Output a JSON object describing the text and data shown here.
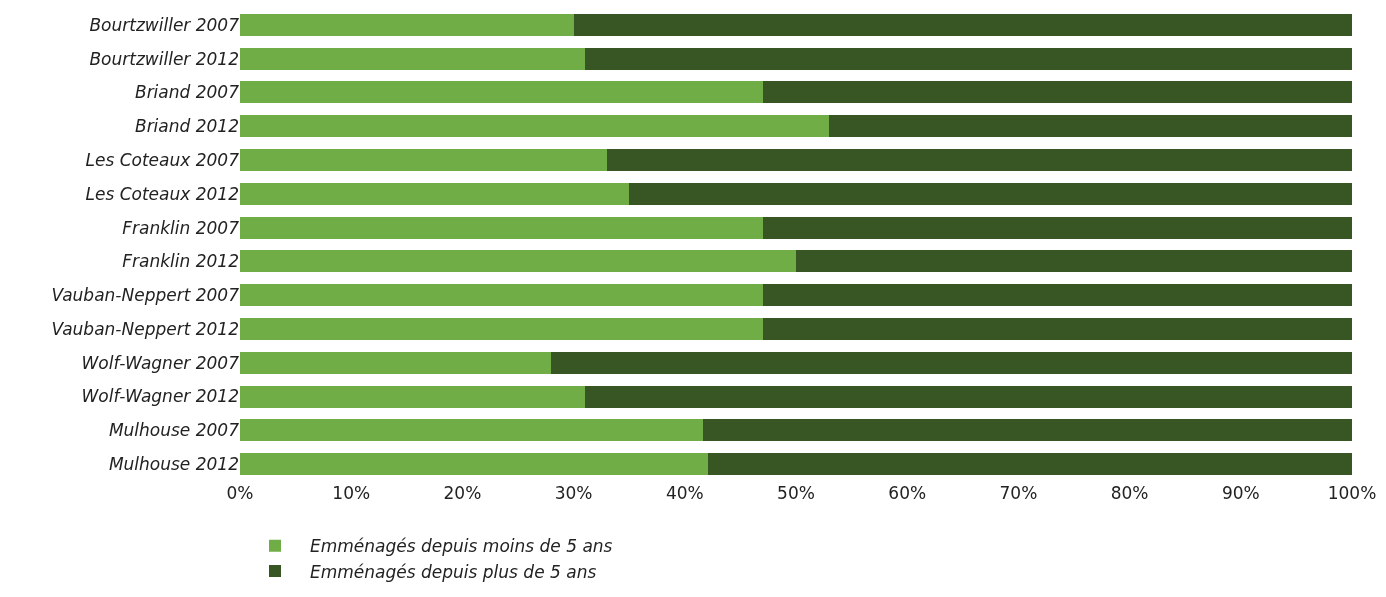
{
  "chart_data": {
    "type": "bar",
    "orientation": "horizontal",
    "stacked": true,
    "categories": [
      "Bourtzwiller 2007",
      "Bourtzwiller 2012",
      "Briand 2007",
      "Briand 2012",
      "Les Coteaux 2007",
      "Les Coteaux 2012",
      "Franklin 2007",
      "Franklin 2012",
      "Vauban-Neppert 2007",
      "Vauban-Neppert 2012",
      "Wolf-Wagner 2007",
      "Wolf-Wagner 2012",
      "Mulhouse 2007",
      "Mulhouse 2012"
    ],
    "series": [
      {
        "name": "Emménagés depuis moins de 5 ans",
        "color": "#70ad47",
        "values": [
          30,
          31,
          47,
          53,
          33,
          35,
          47,
          50,
          47,
          47,
          28,
          31,
          41.6,
          42.1
        ]
      },
      {
        "name": "Emménagés depuis plus de 5 ans",
        "color": "#375623",
        "values": [
          70,
          69,
          53,
          47,
          67,
          65,
          53,
          50,
          53,
          53,
          72,
          69,
          58.4,
          57.9
        ]
      }
    ],
    "xlim": [
      0,
      100
    ],
    "xticks": [
      {
        "value": 0,
        "label": "0%"
      },
      {
        "value": 10,
        "label": "10%"
      },
      {
        "value": 20,
        "label": "20%"
      },
      {
        "value": 30,
        "label": "30%"
      },
      {
        "value": 40,
        "label": "40%"
      },
      {
        "value": 50,
        "label": "50%"
      },
      {
        "value": 60,
        "label": "60%"
      },
      {
        "value": 70,
        "label": "70%"
      },
      {
        "value": 80,
        "label": "80%"
      },
      {
        "value": 90,
        "label": "90%"
      },
      {
        "value": 100,
        "label": "100%"
      }
    ],
    "legend": "bottom"
  }
}
